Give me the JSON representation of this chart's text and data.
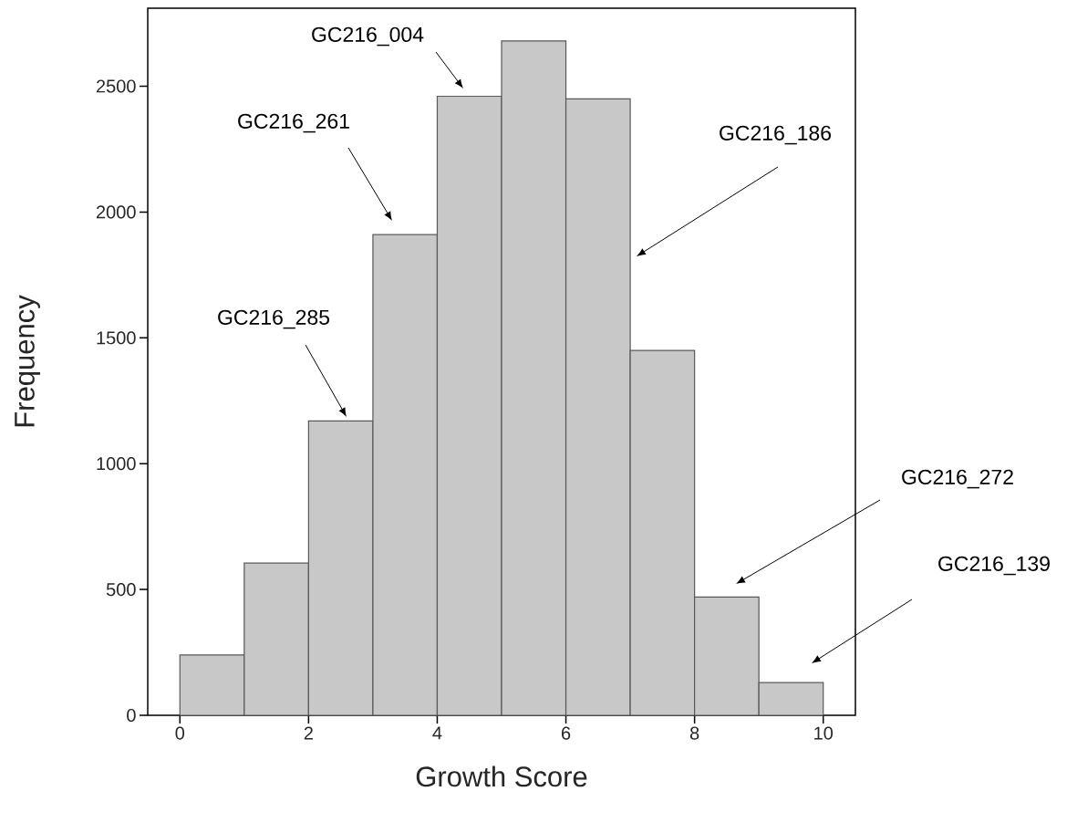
{
  "chart_data": {
    "type": "histogram",
    "xlabel": "Growth Score",
    "ylabel": "Frequency",
    "bins": [
      0,
      1,
      2,
      3,
      4,
      5,
      6,
      7,
      8,
      9,
      10
    ],
    "values": [
      240,
      605,
      1170,
      1910,
      2460,
      2680,
      2450,
      1450,
      470,
      130
    ],
    "color": "#c8c8c8",
    "xlim": [
      -0.5,
      10.5
    ],
    "ylim": [
      0,
      2810
    ],
    "xticks": [
      0,
      2,
      4,
      6,
      8,
      10
    ],
    "yticks": [
      0,
      500,
      1000,
      1500,
      2000,
      2500
    ],
    "annotations": [
      "GC216_004",
      "GC216_261",
      "GC216_285",
      "GC216_186",
      "GC216_272",
      "GC216_139"
    ]
  }
}
